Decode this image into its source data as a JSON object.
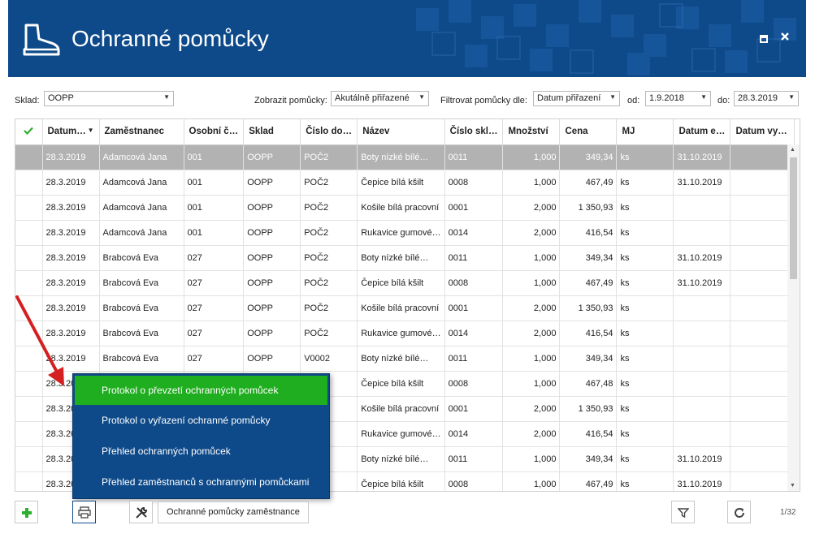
{
  "header": {
    "title": "Ochranné pomůcky",
    "maximize_icon": "maximize-icon",
    "close_icon": "close-icon"
  },
  "filters": {
    "sklad_label": "Sklad:",
    "sklad_value": "OOPP",
    "zobrazit_label": "Zobrazit pomůcky:",
    "zobrazit_value": "Akutálně přiřazené",
    "filtrovat_label": "Filtrovat pomůcky dle:",
    "filtrovat_value": "Datum přiřazení",
    "od_label": "od:",
    "od_value": "1.9.2018",
    "do_label": "do:",
    "do_value": "28.3.2019"
  },
  "grid": {
    "columns": [
      "Datum…",
      "Zaměstnanec",
      "Osobní č…",
      "Sklad",
      "Číslo do…",
      "Název",
      "Číslo skl…",
      "Množství",
      "Cena",
      "MJ",
      "Datum e…",
      "Datum vy…"
    ],
    "rows": [
      [
        "28.3.2019",
        "Adamcová Jana",
        "001",
        "OOPP",
        "POČ2",
        "Boty nízké bílé…",
        "0011",
        "1,000",
        "349,34",
        "ks",
        "31.10.2019",
        ""
      ],
      [
        "28.3.2019",
        "Adamcová Jana",
        "001",
        "OOPP",
        "POČ2",
        "Čepice bílá kšilt",
        "0008",
        "1,000",
        "467,49",
        "ks",
        "31.10.2019",
        ""
      ],
      [
        "28.3.2019",
        "Adamcová Jana",
        "001",
        "OOPP",
        "POČ2",
        "Košile bílá pracovní",
        "0001",
        "2,000",
        "1 350,93",
        "ks",
        "",
        ""
      ],
      [
        "28.3.2019",
        "Adamcová Jana",
        "001",
        "OOPP",
        "POČ2",
        "Rukavice gumové…",
        "0014",
        "2,000",
        "416,54",
        "ks",
        "",
        ""
      ],
      [
        "28.3.2019",
        "Brabcová Eva",
        "027",
        "OOPP",
        "POČ2",
        "Boty nízké bílé…",
        "0011",
        "1,000",
        "349,34",
        "ks",
        "31.10.2019",
        ""
      ],
      [
        "28.3.2019",
        "Brabcová Eva",
        "027",
        "OOPP",
        "POČ2",
        "Čepice bílá kšilt",
        "0008",
        "1,000",
        "467,49",
        "ks",
        "31.10.2019",
        ""
      ],
      [
        "28.3.2019",
        "Brabcová Eva",
        "027",
        "OOPP",
        "POČ2",
        "Košile bílá pracovní",
        "0001",
        "2,000",
        "1 350,93",
        "ks",
        "",
        ""
      ],
      [
        "28.3.2019",
        "Brabcová Eva",
        "027",
        "OOPP",
        "POČ2",
        "Rukavice gumové…",
        "0014",
        "2,000",
        "416,54",
        "ks",
        "",
        ""
      ],
      [
        "28.3.2019",
        "Brabcová Eva",
        "027",
        "OOPP",
        "V0002",
        "Boty nízké bílé…",
        "0011",
        "1,000",
        "349,34",
        "ks",
        "",
        ""
      ],
      [
        "28.3.20",
        "",
        "",
        "",
        "",
        "Čepice bílá kšilt",
        "0008",
        "1,000",
        "467,48",
        "ks",
        "",
        ""
      ],
      [
        "28.3.20",
        "",
        "",
        "",
        "",
        "Košile bílá pracovní",
        "0001",
        "2,000",
        "1 350,93",
        "ks",
        "",
        ""
      ],
      [
        "28.3.20",
        "",
        "",
        "",
        "",
        "Rukavice gumové…",
        "0014",
        "2,000",
        "416,54",
        "ks",
        "",
        ""
      ],
      [
        "28.3.20",
        "",
        "",
        "",
        "",
        "Boty nízké bílé…",
        "0011",
        "1,000",
        "349,34",
        "ks",
        "31.10.2019",
        ""
      ],
      [
        "28.3.20",
        "",
        "",
        "",
        "",
        "Čepice bílá kšilt",
        "0008",
        "1,000",
        "467,49",
        "ks",
        "31.10.2019",
        ""
      ]
    ]
  },
  "menu": {
    "items": [
      "Protokol o převzetí ochranných pomůcek",
      "Protokol o vyřazení ochranné pomůcky",
      "Přehled ochranných pomůcek",
      "Přehled zaměstnanců s ochrannými pomůckami"
    ]
  },
  "toolbar": {
    "employee_button": "Ochranné pomůcky zaměstnance",
    "pager": "1/32"
  },
  "colors": {
    "header_bg": "#0e4a8a",
    "menu_active": "#1fae1f",
    "selected_row": "#b2b2b2",
    "add_icon": "#2fae2f",
    "arrow": "#d42020"
  }
}
